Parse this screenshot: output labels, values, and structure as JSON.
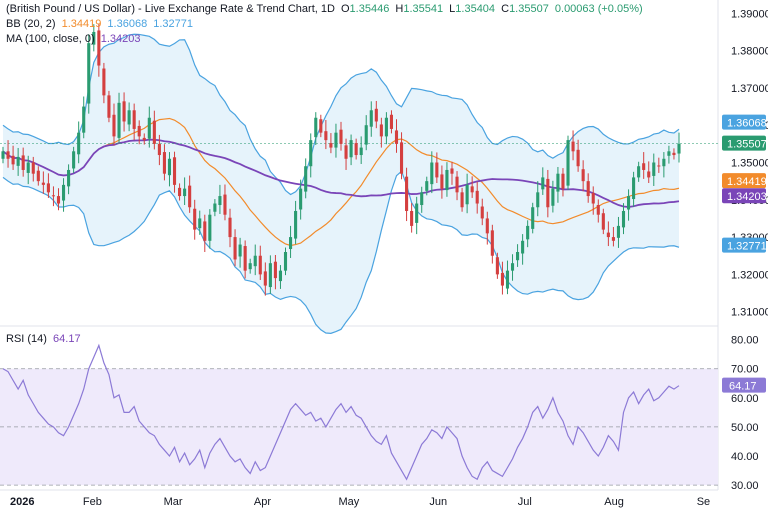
{
  "header": {
    "title": "(British Pound / US Dollar) - Live Exchange Rate & Trend Chart, 1D",
    "o_label": "O",
    "o_value": "1.35446",
    "h_label": "H",
    "h_value": "1.35541",
    "l_label": "L",
    "l_value": "1.35404",
    "c_label": "C",
    "c_value": "1.35507",
    "change": "0.00063 (+0.05%)"
  },
  "legend": {
    "bb_label": "BB (20, 2)",
    "bb_basis": "1.34419",
    "bb_upper": "1.36068",
    "bb_lower": "1.32771",
    "ma_label": "MA (100, close, 0)",
    "ma_value": "1.34203",
    "rsi_label": "RSI (14)",
    "rsi_value": "64.17"
  },
  "colors": {
    "up": "#2a9b70",
    "down": "#d43f3f",
    "bb_band": "#4aa3e0",
    "bb_fill": "#e6f3fb",
    "bb_basis": "#f28b2b",
    "ma": "#7a45b8",
    "rsi_line": "#8c7ad6",
    "rsi_fill": "#efeafb",
    "last_price": "#2a9b70",
    "text": "#131722",
    "separator": "#e0e3eb"
  },
  "price_axis": {
    "ticks": [
      "1.39000",
      "1.38000",
      "1.37000",
      "1.36000",
      "1.35000",
      "1.34000",
      "1.33000",
      "1.32000",
      "1.31000"
    ],
    "tags": [
      {
        "value": "1.36068",
        "color": "#4aa3e0"
      },
      {
        "value": "1.35507",
        "color": "#2a9b70"
      },
      {
        "value": "1.34419",
        "color": "#f28b2b"
      },
      {
        "value": "1.34203",
        "color": "#7a45b8"
      },
      {
        "value": "1.32771",
        "color": "#4aa3e0"
      }
    ]
  },
  "rsi_axis": {
    "ticks": [
      "80.00",
      "70.00",
      "60.00",
      "50.00",
      "40.00",
      "30.00"
    ],
    "tag": "64.17"
  },
  "time_axis": {
    "labels": [
      {
        "text": "2026",
        "bold": true
      },
      {
        "text": "Feb",
        "bold": false
      },
      {
        "text": "Mar",
        "bold": false
      },
      {
        "text": "Apr",
        "bold": false
      },
      {
        "text": "May",
        "bold": false
      },
      {
        "text": "Jun",
        "bold": false
      },
      {
        "text": "Jul",
        "bold": false
      },
      {
        "text": "Aug",
        "bold": false
      },
      {
        "text": "Se",
        "bold": false
      }
    ]
  },
  "chart_data": {
    "type": "candlestick",
    "title": "(British Pound / US Dollar) - Live Exchange Rate & Trend Chart, 1D",
    "price_range": [
      1.3075,
      1.3925
    ],
    "rsi_range": [
      29,
      84
    ],
    "rsi_levels": [
      70,
      50,
      30
    ],
    "date_range": [
      "2026-01-01",
      "2026-08-20"
    ],
    "candle_dates": [
      "2026-01-01",
      "2026-08-19"
    ],
    "closes": [
      1.353,
      1.351,
      1.3495,
      1.3515,
      1.348,
      1.35,
      1.347,
      1.345,
      1.344,
      1.342,
      1.341,
      1.339,
      1.344,
      1.348,
      1.353,
      1.358,
      1.365,
      1.382,
      1.385,
      1.376,
      1.368,
      1.362,
      1.357,
      1.366,
      1.361,
      1.364,
      1.359,
      1.357,
      1.356,
      1.362,
      1.355,
      1.352,
      1.347,
      1.351,
      1.344,
      1.341,
      1.343,
      1.338,
      1.332,
      1.335,
      1.329,
      1.336,
      1.339,
      1.341,
      1.336,
      1.33,
      1.324,
      1.328,
      1.321,
      1.323,
      1.325,
      1.32,
      1.317,
      1.323,
      1.319,
      1.321,
      1.326,
      1.33,
      1.337,
      1.343,
      1.349,
      1.356,
      1.362,
      1.358,
      1.356,
      1.354,
      1.358,
      1.355,
      1.351,
      1.356,
      1.352,
      1.354,
      1.36,
      1.364,
      1.361,
      1.357,
      1.362,
      1.359,
      1.355,
      1.347,
      1.337,
      1.333,
      1.339,
      1.342,
      1.345,
      1.35,
      1.346,
      1.343,
      1.348,
      1.347,
      1.342,
      1.338,
      1.344,
      1.342,
      1.339,
      1.335,
      1.331,
      1.325,
      1.32,
      1.317,
      1.321,
      1.323,
      1.326,
      1.329,
      1.333,
      1.338,
      1.342,
      1.346,
      1.338,
      1.343,
      1.347,
      1.343,
      1.356,
      1.353,
      1.349,
      1.345,
      1.341,
      1.339,
      1.336,
      1.332,
      1.33,
      1.329,
      1.333,
      1.337,
      1.341,
      1.346,
      1.349,
      1.348,
      1.346,
      1.35,
      1.349,
      1.351,
      1.353,
      1.352,
      1.355
    ],
    "bollinger": {
      "period": 20,
      "mult": 2,
      "last": {
        "upper": 1.36068,
        "basis": 1.34419,
        "lower": 1.32771
      }
    },
    "moving_average": {
      "period": 100,
      "last": 1.34203
    },
    "rsi": {
      "period": 14,
      "last": 64.17,
      "values": [
        70,
        69,
        66,
        63,
        66,
        61,
        58,
        55,
        53,
        51,
        50,
        48,
        47,
        50,
        54,
        58,
        63,
        70,
        74,
        78,
        72,
        68,
        60,
        61,
        55,
        55,
        57,
        52,
        50,
        48,
        47,
        44,
        42,
        40,
        43,
        38,
        41,
        37,
        39,
        42,
        36,
        41,
        44,
        46,
        43,
        40,
        38,
        39,
        36,
        34,
        38,
        35,
        36,
        40,
        44,
        48,
        52,
        56,
        58,
        56,
        54,
        55,
        52,
        53,
        50,
        53,
        56,
        58,
        55,
        57,
        54,
        53,
        50,
        47,
        45,
        44,
        47,
        41,
        38,
        35,
        32,
        36,
        40,
        44,
        46,
        49,
        48,
        46,
        50,
        48,
        46,
        40,
        36,
        33,
        32,
        36,
        38,
        35,
        34,
        33,
        36,
        39,
        43,
        46,
        50,
        55,
        57,
        53,
        56,
        60,
        55,
        52,
        47,
        44,
        50,
        48,
        45,
        42,
        40,
        43,
        47,
        45,
        42,
        55,
        60,
        62,
        58,
        61,
        63,
        59,
        60,
        62,
        64,
        63,
        64.17
      ]
    },
    "last_price": 1.35507
  }
}
